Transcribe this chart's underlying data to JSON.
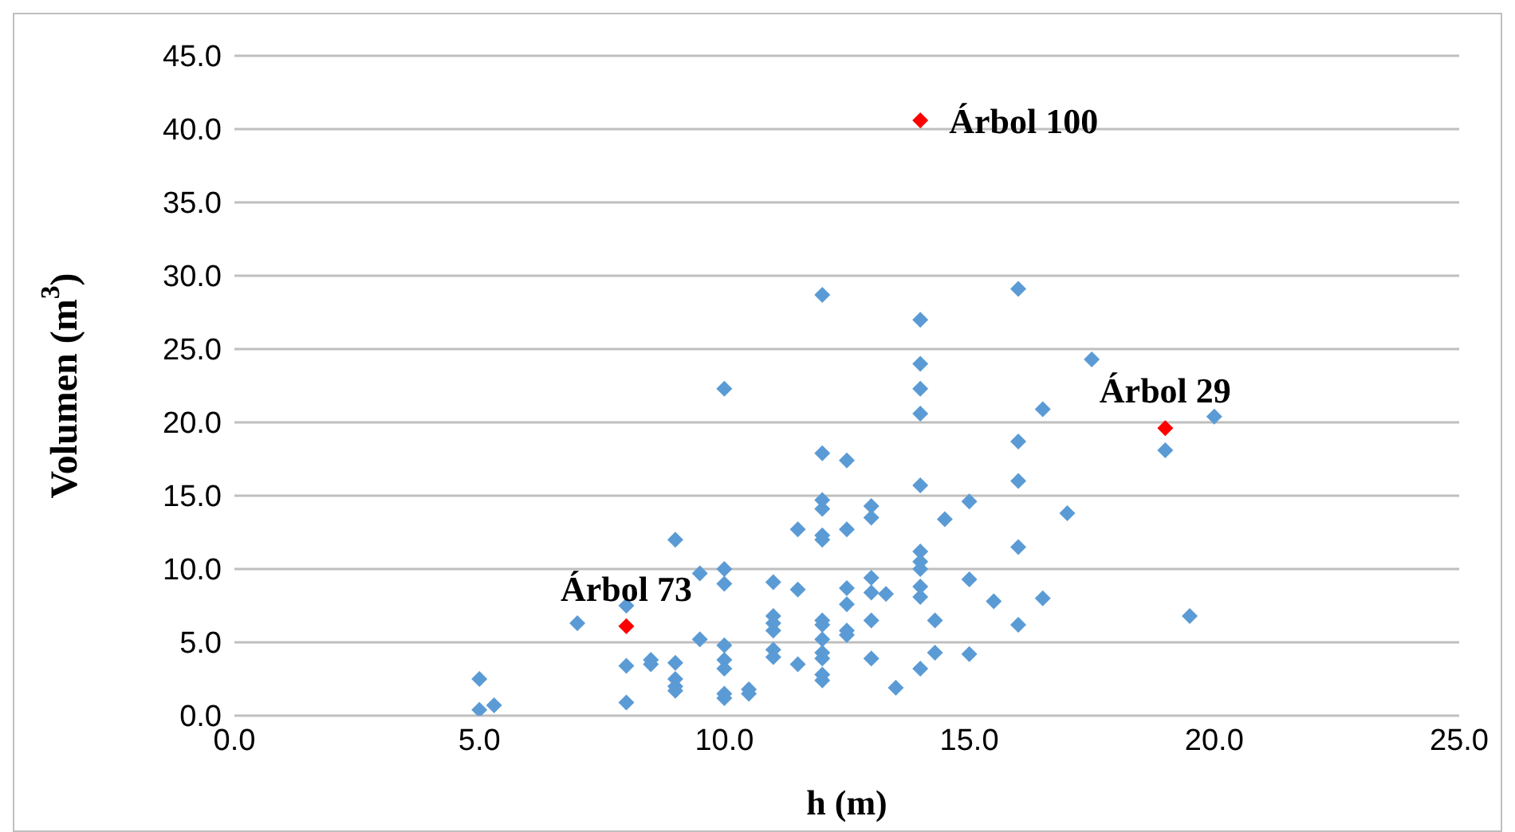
{
  "chart_data": {
    "type": "scatter",
    "xlabel": "h  (m)",
    "ylabel": "Volumen (m$^{3}$)",
    "xlim": [
      0,
      25
    ],
    "xticks": [
      {
        "value": 0,
        "label": "0.0"
      },
      {
        "value": 5,
        "label": "5.0"
      },
      {
        "value": 10,
        "label": "10.0"
      },
      {
        "value": 15,
        "label": "15.0"
      },
      {
        "value": 20,
        "label": "20.0"
      },
      {
        "value": 25,
        "label": "25.0"
      }
    ],
    "ylim": [
      0,
      45
    ],
    "yticks": [
      {
        "value": 0,
        "label": "0.0"
      },
      {
        "value": 5,
        "label": "5.0"
      },
      {
        "value": 10,
        "label": "10.0"
      },
      {
        "value": 15,
        "label": "15.0"
      },
      {
        "value": 20,
        "label": "20.0"
      },
      {
        "value": 25,
        "label": "25.0"
      },
      {
        "value": 30,
        "label": "30.0"
      },
      {
        "value": 35,
        "label": "35.0"
      },
      {
        "value": 40,
        "label": "40.0"
      },
      {
        "value": 45,
        "label": "45.0"
      }
    ],
    "grid": "y",
    "marker": "diamond",
    "legend": false,
    "series": [
      {
        "color": "#5b9bd5",
        "x": [
          5,
          5,
          5.3,
          7,
          8,
          8,
          8,
          8.5,
          8.5,
          9,
          9,
          9,
          9,
          9,
          9.5,
          9.5,
          10,
          10,
          10,
          10,
          10,
          10,
          10,
          10,
          10.5,
          10.5,
          11,
          11,
          11,
          11,
          11,
          11,
          11.5,
          11.5,
          11.5,
          12,
          12,
          12,
          12,
          12,
          12,
          12,
          12,
          12,
          12,
          12,
          12,
          12,
          12.5,
          12.5,
          12.5,
          12.5,
          12.5,
          12.5,
          13,
          13,
          13,
          13,
          13,
          13,
          13.3,
          13.5,
          14,
          14,
          14,
          14,
          14,
          14,
          14,
          14,
          14,
          14,
          14,
          14.3,
          14.3,
          14.5,
          15,
          15,
          15,
          15.5,
          16,
          16,
          16,
          16,
          16,
          16.5,
          16.5,
          17,
          17.5,
          19,
          19.5,
          20
        ],
        "values": [
          2.5,
          0.4,
          0.7,
          6.3,
          7.5,
          3.4,
          0.9,
          3.8,
          3.5,
          12,
          3.6,
          2.5,
          2,
          1.7,
          9.7,
          5.2,
          22.3,
          10,
          9,
          4.8,
          3.8,
          3.2,
          1.5,
          1.2,
          1.8,
          1.5,
          9.1,
          6.8,
          6.3,
          5.8,
          4.5,
          4,
          12.7,
          8.6,
          3.5,
          28.7,
          17.9,
          14.7,
          14.1,
          12.3,
          12,
          6.5,
          6.2,
          5.2,
          4.3,
          3.9,
          2.8,
          2.4,
          17.4,
          12.7,
          8.7,
          7.6,
          5.8,
          5.5,
          14.3,
          13.5,
          9.4,
          8.4,
          6.5,
          3.9,
          8.3,
          1.9,
          27,
          24,
          22.3,
          20.6,
          15.7,
          11.2,
          10.5,
          10,
          8.8,
          8.1,
          3.2,
          6.5,
          4.3,
          13.4,
          14.6,
          9.3,
          4.2,
          7.8,
          29.1,
          18.7,
          16,
          11.5,
          6.2,
          20.9,
          8,
          13.8,
          24.3,
          18.1,
          6.8,
          20.4
        ]
      },
      {
        "color": "#ff0000",
        "x": [
          14,
          8,
          19
        ],
        "values": [
          40.6,
          6.1,
          19.6
        ]
      }
    ],
    "annotations": [
      {
        "text": "Árbol 100",
        "x": 14,
        "y": 40.6
      },
      {
        "text": "Árbol 73",
        "x": 8,
        "y": 6.1
      },
      {
        "text": "Árbol 29",
        "x": 19,
        "y": 19.6
      }
    ]
  }
}
